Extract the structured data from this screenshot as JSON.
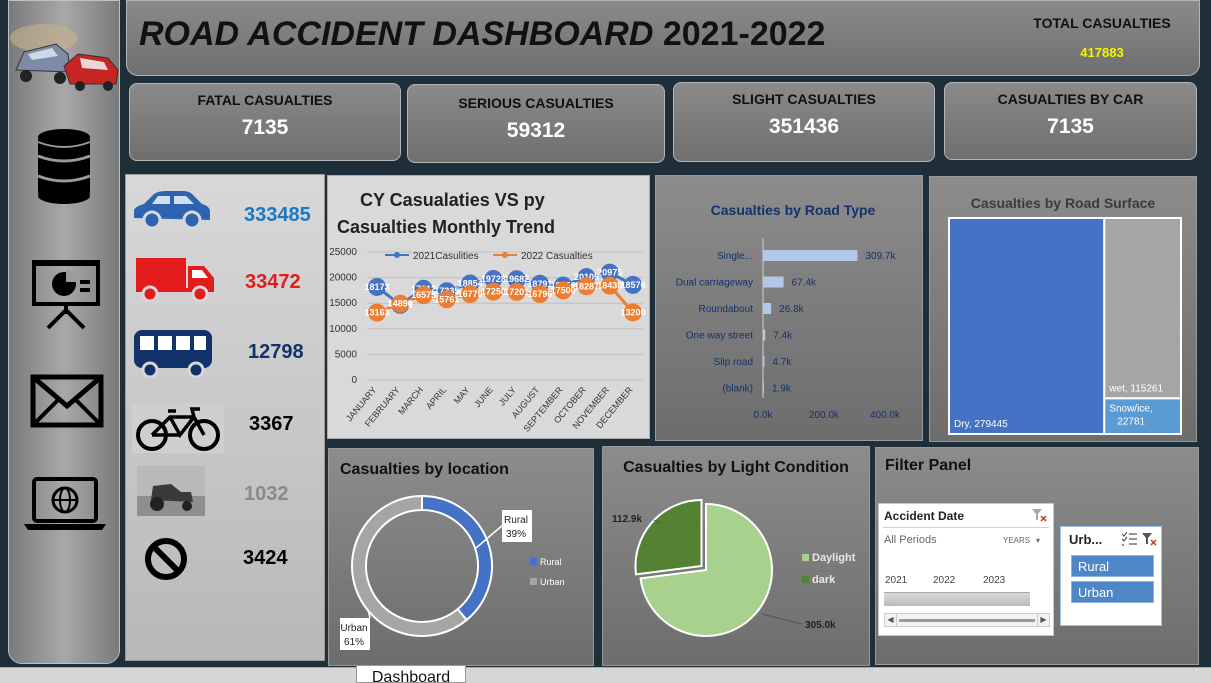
{
  "header": {
    "title_italic": "ROAD ACCIDENT DASHBOARD",
    "title_year": "2021-2022",
    "total_label": "TOTAL CASUALTIES",
    "total_value": "417883"
  },
  "kpis": [
    {
      "label": "FATAL CASUALTIES",
      "value": "7135"
    },
    {
      "label": "SERIOUS CASUALTIES",
      "value": "59312"
    },
    {
      "label": "SLIGHT CASUALTIES",
      "value": "351436"
    },
    {
      "label": "CASUALTIES BY CAR",
      "value": "7135"
    }
  ],
  "sidebar": {
    "icons": [
      "car-crash-logo-icon",
      "database-icon",
      "presentation-chart-icon",
      "mail-icon",
      "laptop-globe-icon"
    ]
  },
  "vehicles": [
    {
      "icon": "car-icon",
      "value": "333485",
      "color": "#1a78c2"
    },
    {
      "icon": "truck-icon",
      "value": "33472",
      "color": "#e31b1b"
    },
    {
      "icon": "bus-icon",
      "value": "12798",
      "color": "#12326b"
    },
    {
      "icon": "bicycle-icon",
      "value": "3367",
      "color": "#000000"
    },
    {
      "icon": "farm-vehicle-icon",
      "value": "1032",
      "color": "#8a8a8a"
    },
    {
      "icon": "no-entry-icon",
      "value": "3424",
      "color": "#000000"
    }
  ],
  "trend": {
    "title_line1": "CY Casualaties VS py",
    "title_line2": "Casualties Monthly Trend"
  },
  "road_type": {
    "title": "Casualties by Road Type"
  },
  "road_surface": {
    "title": "Casualties by Road Surface"
  },
  "location": {
    "title": "Casualties by location"
  },
  "light": {
    "title": "Casualties by Light Condition"
  },
  "filter": {
    "title": "Filter Panel",
    "date_slicer": {
      "title": "Accident  Date",
      "periods": "All Periods",
      "granularity": "YEARS",
      "years": [
        "2021",
        "2022",
        "2023"
      ]
    },
    "urban_slicer": {
      "title": "Urb...",
      "items": [
        "Rural",
        "Urban"
      ]
    }
  },
  "sheet_tabs": [
    "Dashboard"
  ],
  "chart_data": [
    {
      "type": "line",
      "categories": [
        "JANUARY",
        "FEBRUARY",
        "MARCH",
        "APRIL",
        "MAY",
        "JUNE",
        "JULY",
        "AUGUST",
        "SEPTEMBER",
        "OCTOBER",
        "NOVEMBER",
        "DECEMBER"
      ],
      "series": [
        {
          "name": "2021Casulities",
          "values": [
            18173,
            14688,
            17812,
            17335,
            18854,
            19728,
            19682,
            18791,
            18456,
            20105,
            20975,
            18576
          ],
          "color": "#4472c4"
        },
        {
          "name": "2022 Casualties",
          "values": [
            13163,
            14896,
            16575,
            15761,
            16779,
            17250,
            17201,
            16796,
            17500,
            18287,
            18430,
            13200
          ],
          "color": "#ed7d31"
        }
      ],
      "ylim": [
        0,
        25000
      ],
      "yticks": [
        "25000",
        "20000",
        "15000",
        "10000",
        "5000",
        "0"
      ],
      "legend": "top"
    },
    {
      "type": "bar",
      "orientation": "horizontal",
      "categories": [
        "Single...",
        "Dual carriageway",
        "Roundabout",
        "One way street",
        "Slip road",
        "(blank)"
      ],
      "values": [
        309.7,
        67.4,
        26.8,
        7.4,
        4.7,
        1.9
      ],
      "labels": [
        "309.7k",
        "67.4k",
        "26.8k",
        "7.4k",
        "4.7k",
        "1.9k"
      ],
      "xticks": [
        "0.0k",
        "200.0k",
        "400.0k"
      ],
      "xlim": [
        0,
        400
      ]
    },
    {
      "type": "treemap",
      "items": [
        {
          "label": "Dry, 279445",
          "value": 279445,
          "color": "#4472c4"
        },
        {
          "label": "wet, 115261",
          "value": 115261,
          "color": "#a5a5a5"
        },
        {
          "label_line1": "Snow/ice,",
          "label_line2": "22781",
          "value": 22781,
          "color": "#5b9bd5"
        }
      ]
    },
    {
      "type": "pie",
      "variant": "donut",
      "items": [
        {
          "name": "Rural",
          "percent": 39,
          "label_name": "Rural",
          "label_pct": "39%",
          "color": "#4472c4"
        },
        {
          "name": "Urban",
          "percent": 61,
          "label_name": "Urban",
          "label_pct": "61%",
          "color": "#a5a5a5"
        }
      ],
      "legend": [
        "Rural",
        "Urban"
      ]
    },
    {
      "type": "pie",
      "items": [
        {
          "name": "Daylight",
          "value": 305.0,
          "label": "305.0k",
          "color": "#a9d18e"
        },
        {
          "name": "dark",
          "value": 112.9,
          "label": "112.9k",
          "color": "#548235"
        }
      ],
      "legend": [
        "Daylight",
        "dark"
      ]
    }
  ]
}
